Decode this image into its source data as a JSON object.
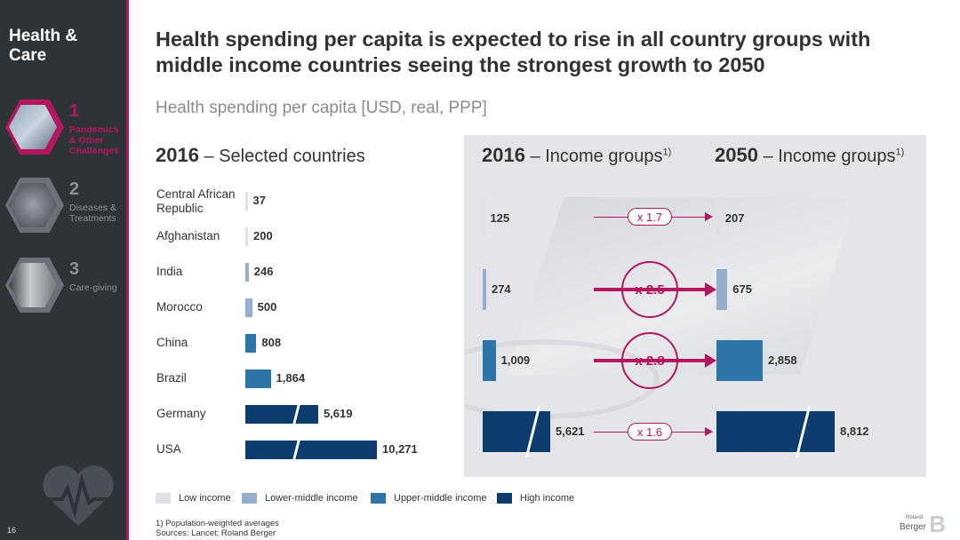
{
  "sidebar": {
    "section_title": "Health & Care",
    "items": [
      {
        "number": "1",
        "label": "Pandemics & Other Challenges",
        "active": true
      },
      {
        "number": "2",
        "label": "Diseases & Treatments",
        "active": false
      },
      {
        "number": "3",
        "label": "Care-giving",
        "active": false
      }
    ],
    "page_number": "16"
  },
  "title": "Health spending per capita is expected to rise in all country groups with middle income countries seeing the strongest growth to 2050",
  "subtitle": "Health spending per capita [USD, real, PPP]",
  "colors": {
    "low_income": "#dfe1e4",
    "lower_middle_income": "#95aecd",
    "upper_middle_income": "#2d75a8",
    "high_income": "#0c3d6e",
    "accent": "#b5175f"
  },
  "chart_data": [
    {
      "type": "bar",
      "title_bold": "2016",
      "title_rest": " – Selected countries",
      "orientation": "horizontal",
      "categories": [
        "Central African Republic",
        "Afghanistan",
        "India",
        "Morocco",
        "China",
        "Brazil",
        "Germany",
        "USA"
      ],
      "values": [
        37,
        200,
        246,
        500,
        808,
        1864,
        5619,
        10271
      ],
      "value_labels": [
        "37",
        "200",
        "246",
        "500",
        "808",
        "1,864",
        "5,619",
        "10,271"
      ],
      "groups": [
        "low",
        "low",
        "lower_middle",
        "lower_middle",
        "upper_middle",
        "upper_middle",
        "high",
        "high"
      ],
      "axis_break_after": 2000
    },
    {
      "type": "bar",
      "title_bold": "2016",
      "title_rest": " – Income groups",
      "title_note": "1)",
      "orientation": "horizontal",
      "categories": [
        "Low income",
        "Lower-middle income",
        "Upper-middle income",
        "High income"
      ],
      "values": [
        125,
        274,
        1009,
        5621
      ],
      "value_labels": [
        "125",
        "274",
        "1,009",
        "5,621"
      ],
      "axis_break_after": 1200
    },
    {
      "type": "bar",
      "title_bold": "2050",
      "title_rest": " – Income groups",
      "title_note": "1)",
      "orientation": "horizontal",
      "categories": [
        "Low income",
        "Lower-middle income",
        "Upper-middle income",
        "High income"
      ],
      "values": [
        207,
        675,
        2858,
        8812
      ],
      "value_labels": [
        "207",
        "675",
        "2,858",
        "8,812"
      ],
      "axis_break_after": 3200
    }
  ],
  "growth_factors": [
    {
      "label": "x 1.7",
      "emphasis": false
    },
    {
      "label": "x 2.5",
      "emphasis": true
    },
    {
      "label": "x 2.8",
      "emphasis": true
    },
    {
      "label": "x 1.6",
      "emphasis": false
    }
  ],
  "legend": [
    {
      "label": "Low income",
      "group": "low"
    },
    {
      "label": "Lower-middle income",
      "group": "lower_middle"
    },
    {
      "label": "Upper-middle income",
      "group": "upper_middle"
    },
    {
      "label": "High income",
      "group": "high"
    }
  ],
  "footnote": [
    "1) Population-weighted averages",
    "Sources: Lancet; Roland Berger"
  ],
  "brand": {
    "small": "Roland",
    "big": "Berger",
    "mark": "B"
  }
}
